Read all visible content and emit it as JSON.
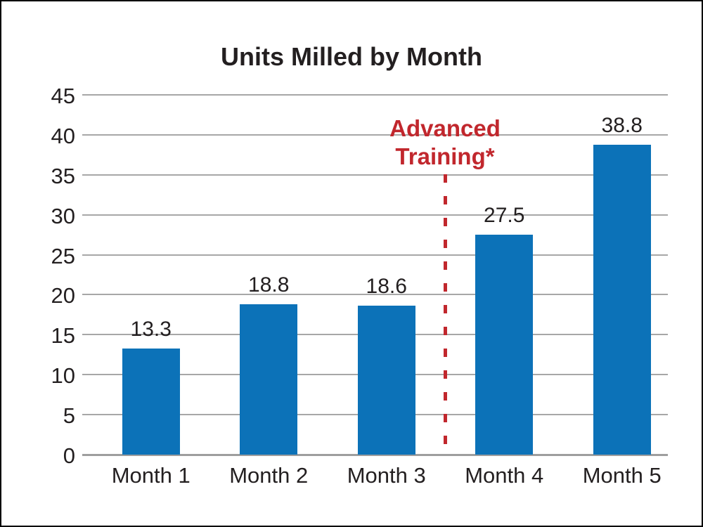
{
  "chart_data": {
    "type": "bar",
    "title": "Units Milled by Month",
    "categories": [
      "Month 1",
      "Month 2",
      "Month 3",
      "Month 4",
      "Month 5"
    ],
    "values": [
      13.3,
      18.8,
      18.6,
      27.5,
      38.8
    ],
    "value_labels": [
      "13.3",
      "18.8",
      "18.6",
      "27.5",
      "38.8"
    ],
    "xlabel": "",
    "ylabel": "",
    "ylim": [
      0,
      45
    ],
    "yticks": [
      0,
      5,
      10,
      15,
      20,
      25,
      30,
      35,
      40,
      45
    ],
    "ytick_labels": [
      "0",
      "5",
      "10",
      "15",
      "20",
      "25",
      "30",
      "35",
      "40",
      "45"
    ],
    "grid": "horizontal",
    "legend": "none",
    "colors": {
      "bar": "#0C72B8",
      "gridline": "#A7A7A7",
      "axis_line": "#9E9E9E",
      "text": "#231F20",
      "annotation": "#C1272D",
      "background": "#FFFFFF",
      "border": "#000000"
    },
    "annotation": {
      "lines": [
        "Advanced",
        "Training*"
      ],
      "divider": "dashed vertical line between Month 3 and Month 4"
    }
  }
}
